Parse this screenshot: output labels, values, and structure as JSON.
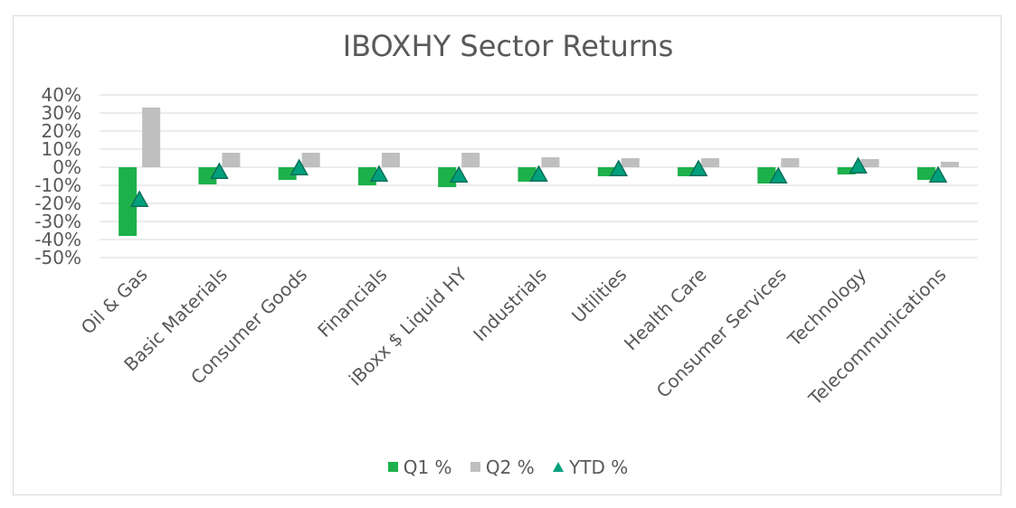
{
  "chart_data": {
    "type": "bar",
    "title": "IBOXHY Sector Returns",
    "xlabel": "",
    "ylabel": "",
    "ylim": [
      -50,
      40
    ],
    "yticks": [
      "40%",
      "30%",
      "20%",
      "10%",
      "0%",
      "-10%",
      "-20%",
      "-30%",
      "-40%",
      "-50%"
    ],
    "categories": [
      "Oil & Gas",
      "Basic Materials",
      "Consumer Goods",
      "Financials",
      "iBoxx $ Liquid HY",
      "Industrials",
      "Utilities",
      "Health Care",
      "Consumer Services",
      "Technology",
      "Telecommunications"
    ],
    "series": [
      {
        "name": "Q1 %",
        "kind": "bar",
        "color": "#1db14b",
        "values": [
          -38,
          -9.5,
          -7,
          -10,
          -11,
          -8,
          -5,
          -5,
          -9,
          -4,
          -7
        ]
      },
      {
        "name": "Q2 %",
        "kind": "bar",
        "color": "#bfbfbf",
        "values": [
          33,
          8,
          8,
          8,
          8,
          5.5,
          5,
          5,
          5,
          4.5,
          3
        ]
      },
      {
        "name": "YTD %",
        "kind": "marker",
        "color": "#00a07d",
        "values": [
          -18,
          -2.5,
          -0.5,
          -4,
          -4.5,
          -4,
          -1,
          -1,
          -5,
          0.5,
          -4.5
        ]
      }
    ],
    "grid": true,
    "legend": "bottom"
  }
}
